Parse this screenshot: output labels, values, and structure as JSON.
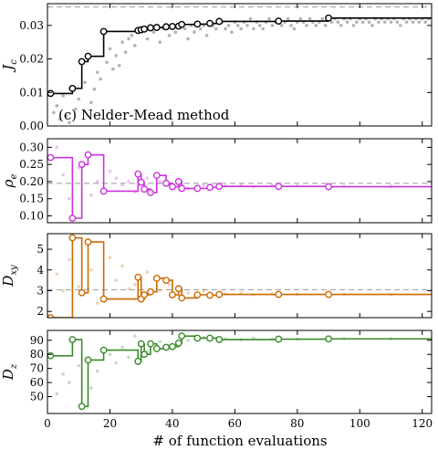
{
  "figure": {
    "xlabel": "# of function evaluations",
    "xlim": [
      0,
      123
    ],
    "xticks": [
      0,
      20,
      40,
      60,
      80,
      100,
      120
    ]
  },
  "chart_data": [
    {
      "type": "line",
      "ylabel": "J_c",
      "annotation": "(c) Nelder-Mead method",
      "ylim": [
        0,
        0.0365
      ],
      "yticks": [
        0.0,
        0.01,
        0.02,
        0.03
      ],
      "ytick_labels": [
        "0.00",
        "0.01",
        "0.02",
        "0.03"
      ],
      "reference_line": 0.0355,
      "color": "#000000",
      "best_so_far": {
        "x": [
          1,
          8,
          11,
          13,
          18,
          29,
          30,
          31,
          33,
          35,
          38,
          40,
          42,
          43,
          48,
          52,
          55,
          74,
          90,
          123
        ],
        "y": [
          0.0097,
          0.0112,
          0.0192,
          0.0208,
          0.0282,
          0.0285,
          0.0287,
          0.0289,
          0.0293,
          0.0294,
          0.0296,
          0.0297,
          0.0298,
          0.0303,
          0.0304,
          0.0306,
          0.0312,
          0.0313,
          0.0322,
          0.0322
        ]
      },
      "evaluations": {
        "x": [
          2,
          3,
          4,
          5,
          6,
          7,
          9,
          10,
          12,
          14,
          15,
          16,
          17,
          19,
          20,
          21,
          22,
          23,
          24,
          25,
          26,
          27,
          28,
          32,
          34,
          36,
          37,
          39,
          41,
          44,
          45,
          46,
          47,
          49,
          50,
          51,
          53,
          54,
          56,
          57,
          58,
          59,
          60,
          61,
          62,
          63,
          64,
          65,
          66,
          67,
          68,
          69,
          70,
          71,
          72,
          73,
          75,
          76,
          77,
          78,
          79,
          80,
          81,
          82,
          83,
          84,
          85,
          86,
          87,
          88,
          89,
          91,
          92,
          93,
          94,
          95,
          96,
          97,
          98,
          99,
          100,
          101,
          102,
          103,
          104,
          105,
          106,
          107,
          108,
          109,
          110,
          111,
          112,
          113,
          114,
          115,
          116,
          117,
          118,
          119,
          120,
          121,
          122
        ],
        "y": [
          0.004,
          0.006,
          0.002,
          0.009,
          0.003,
          0.001,
          0.005,
          0.008,
          0.013,
          0.007,
          0.011,
          0.016,
          0.014,
          0.019,
          0.023,
          0.017,
          0.021,
          0.018,
          0.025,
          0.022,
          0.026,
          0.027,
          0.024,
          0.026,
          0.028,
          0.025,
          0.029,
          0.027,
          0.028,
          0.029,
          0.026,
          0.03,
          0.028,
          0.029,
          0.03,
          0.027,
          0.03,
          0.029,
          0.031,
          0.029,
          0.03,
          0.028,
          0.031,
          0.03,
          0.029,
          0.031,
          0.03,
          0.032,
          0.029,
          0.031,
          0.03,
          0.029,
          0.031,
          0.032,
          0.03,
          0.031,
          0.03,
          0.031,
          0.032,
          0.03,
          0.029,
          0.031,
          0.032,
          0.031,
          0.03,
          0.032,
          0.031,
          0.03,
          0.031,
          0.032,
          0.03,
          0.031,
          0.032,
          0.031,
          0.03,
          0.032,
          0.031,
          0.032,
          0.03,
          0.031,
          0.032,
          0.031,
          0.032,
          0.031,
          0.03,
          0.032,
          0.031,
          0.032,
          0.031,
          0.032,
          0.031,
          0.032,
          0.031,
          0.03,
          0.032,
          0.031,
          0.032,
          0.031,
          0.032,
          0.031,
          0.032,
          0.031,
          0.032
        ]
      }
    },
    {
      "type": "line",
      "ylabel": "ρ_e",
      "ylim": [
        0.08,
        0.325
      ],
      "yticks": [
        0.1,
        0.15,
        0.2,
        0.25,
        0.3
      ],
      "ytick_labels": [
        "0.10",
        "0.15",
        "0.20",
        "0.25",
        "0.30"
      ],
      "reference_line": 0.195,
      "color": "#cc33dd",
      "best_so_far": {
        "x": [
          1,
          8,
          11,
          13,
          18,
          29,
          30,
          31,
          33,
          35,
          38,
          40,
          42,
          43,
          48,
          52,
          55,
          74,
          90,
          123
        ],
        "y": [
          0.27,
          0.093,
          0.25,
          0.278,
          0.172,
          0.222,
          0.198,
          0.178,
          0.168,
          0.218,
          0.195,
          0.185,
          0.2,
          0.18,
          0.18,
          0.183,
          0.186,
          0.186,
          0.185,
          0.185
        ]
      },
      "evaluations": {
        "x": [
          3,
          5,
          7,
          10,
          14,
          16,
          20,
          22,
          24,
          26,
          28,
          32,
          36,
          39,
          45,
          50,
          57,
          62,
          66,
          72,
          80,
          95,
          110
        ],
        "y": [
          0.3,
          0.22,
          0.15,
          0.24,
          0.16,
          0.2,
          0.23,
          0.21,
          0.19,
          0.2,
          0.17,
          0.21,
          0.2,
          0.19,
          0.18,
          0.19,
          0.187,
          0.19,
          0.185,
          0.19,
          0.188,
          0.187,
          0.186
        ]
      }
    },
    {
      "type": "line",
      "ylabel": "D_xy",
      "ylim": [
        1.7,
        5.75
      ],
      "yticks": [
        2,
        3,
        4,
        5
      ],
      "ytick_labels": [
        "2",
        "3",
        "4",
        "5"
      ],
      "reference_line": 3.05,
      "color": "#cc6a00",
      "best_so_far": {
        "x": [
          1,
          8,
          11,
          13,
          18,
          29,
          30,
          31,
          33,
          35,
          38,
          40,
          42,
          43,
          48,
          52,
          55,
          74,
          90,
          123
        ],
        "y": [
          1.7,
          5.55,
          2.9,
          5.35,
          2.6,
          3.65,
          2.6,
          2.8,
          2.95,
          3.6,
          3.5,
          2.8,
          3.1,
          2.65,
          2.8,
          2.78,
          2.82,
          2.82,
          2.82,
          2.82
        ]
      },
      "evaluations": {
        "x": [
          3,
          5,
          7,
          10,
          14,
          16,
          20,
          22,
          24,
          26,
          28,
          32,
          36,
          39,
          45,
          50,
          57,
          62,
          66,
          72,
          80,
          95,
          110
        ],
        "y": [
          3.8,
          3.0,
          4.5,
          3.2,
          4.0,
          2.4,
          4.6,
          3.5,
          4.2,
          3.1,
          3.3,
          3.9,
          3.0,
          3.3,
          2.9,
          3.0,
          2.85,
          2.9,
          2.8,
          2.85,
          2.83,
          2.82,
          2.82
        ]
      }
    },
    {
      "type": "line",
      "ylabel": "D_z",
      "ylim": [
        38,
        97
      ],
      "yticks": [
        50,
        60,
        70,
        80,
        90
      ],
      "ytick_labels": [
        "50",
        "60",
        "70",
        "80",
        "90"
      ],
      "reference_line": null,
      "color": "#3a8a2a",
      "best_so_far": {
        "x": [
          1,
          8,
          11,
          13,
          18,
          29,
          30,
          31,
          33,
          35,
          38,
          40,
          42,
          43,
          48,
          52,
          55,
          74,
          90,
          123
        ],
        "y": [
          79,
          90.5,
          43,
          76,
          83,
          75,
          87.5,
          80,
          87.5,
          84,
          85,
          85.5,
          88,
          93,
          91.5,
          91.5,
          90.5,
          90.8,
          91,
          91
        ]
      },
      "evaluations": {
        "x": [
          3,
          5,
          7,
          10,
          14,
          16,
          20,
          22,
          24,
          26,
          28,
          32,
          36,
          39,
          45,
          50,
          57,
          62,
          66,
          72,
          80,
          95,
          110
        ],
        "y": [
          52,
          66,
          60,
          72,
          56,
          68,
          80,
          74,
          85,
          78,
          93,
          82,
          89,
          86,
          90,
          92,
          91,
          90.5,
          91.5,
          91,
          90.8,
          91,
          91
        ]
      }
    }
  ]
}
